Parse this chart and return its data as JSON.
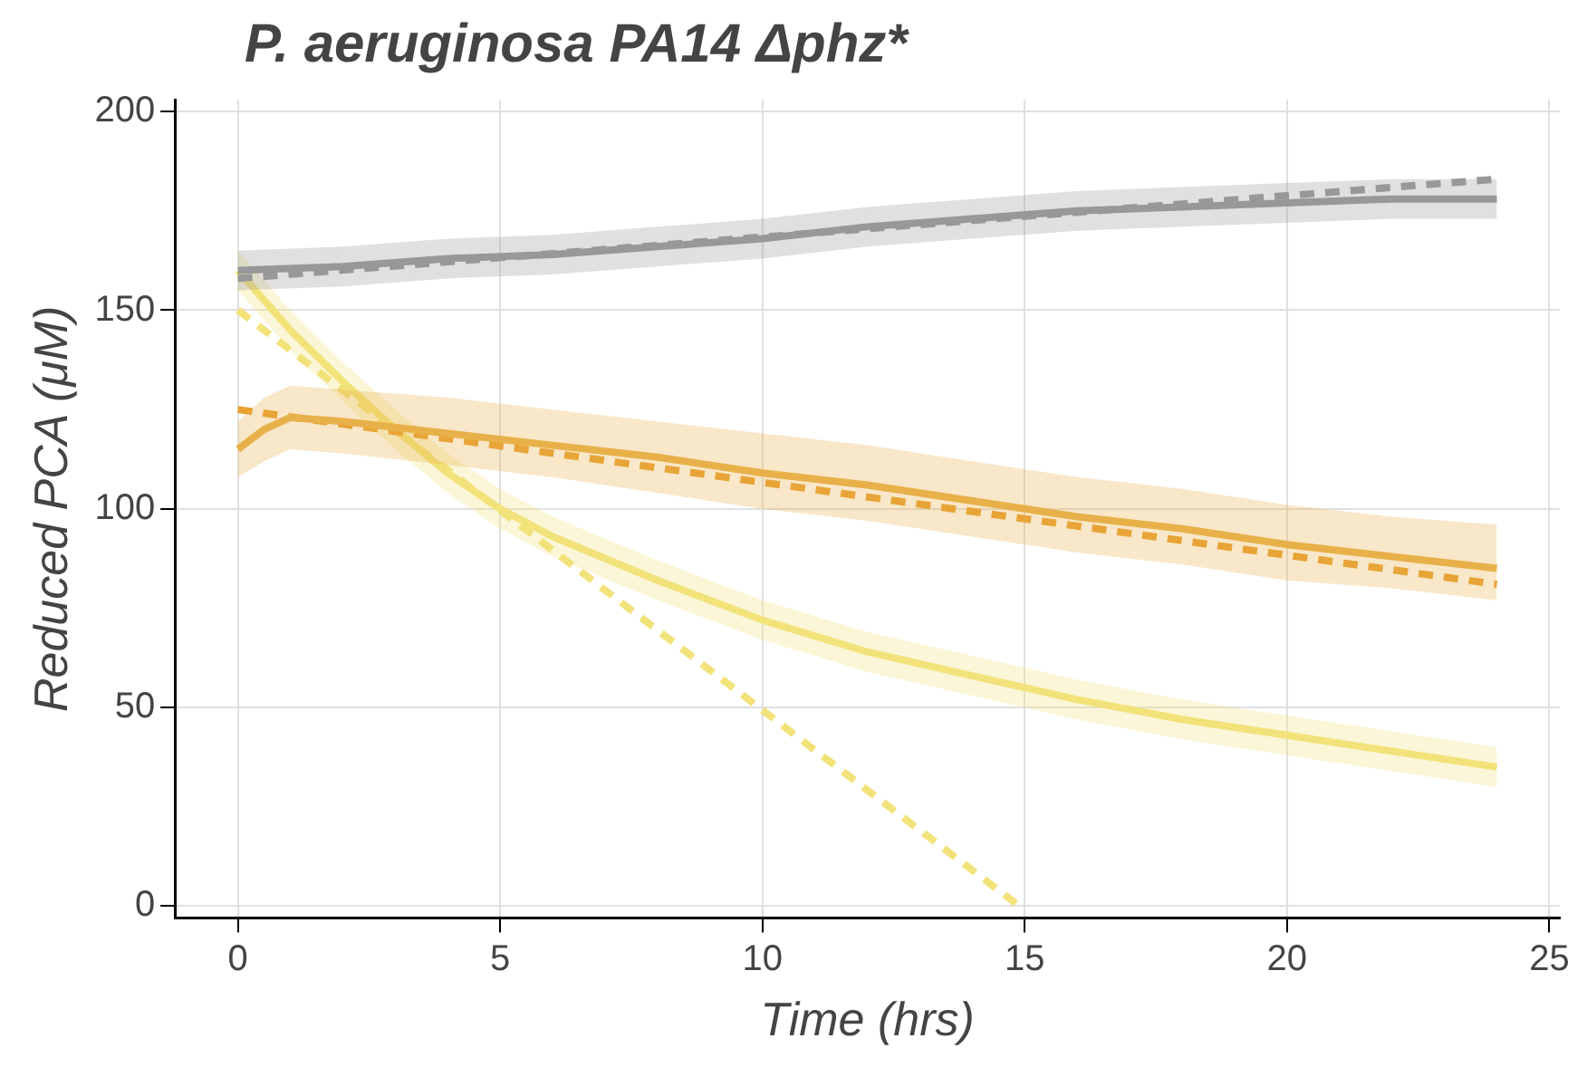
{
  "chart_data": {
    "type": "line",
    "title": "P. aeruginosa PA14 Δphz*",
    "xlabel": "Time (hrs)",
    "ylabel": "Reduced PCA (μM)",
    "xlim": [
      -1.2,
      25.2
    ],
    "ylim": [
      -3,
      203
    ],
    "xticks": [
      0,
      5,
      10,
      15,
      20,
      25
    ],
    "yticks": [
      0,
      50,
      100,
      150,
      200
    ],
    "grid": true,
    "legend": false,
    "marker": "none",
    "series": [
      {
        "color": "#999999",
        "x": [
          0,
          2,
          4,
          6,
          8,
          10,
          12,
          14,
          16,
          18,
          20,
          22,
          24
        ],
        "values": [
          160,
          161,
          163,
          164,
          166,
          168,
          171,
          173,
          175,
          176,
          177,
          178,
          178
        ],
        "lower": [
          155,
          156,
          158,
          159,
          161,
          163,
          166,
          168,
          170,
          171,
          172,
          173,
          173
        ],
        "upper": [
          165,
          166,
          168,
          169,
          171,
          173,
          176,
          178,
          180,
          181,
          182,
          183,
          183
        ]
      },
      {
        "color": "#999999",
        "line_style": "dashed",
        "x": [
          0,
          24
        ],
        "values": [
          158,
          183
        ]
      },
      {
        "color": "#e8b04a",
        "x": [
          0,
          0.5,
          1,
          2,
          4,
          6,
          8,
          10,
          12,
          14,
          16,
          18,
          20,
          22,
          24
        ],
        "values": [
          115,
          120,
          123,
          122,
          119,
          116,
          113,
          109,
          106,
          102,
          98,
          95,
          91,
          88,
          85
        ],
        "lower": [
          108,
          112,
          115,
          114,
          111,
          108,
          104,
          100,
          97,
          93,
          89,
          86,
          82,
          80,
          77
        ],
        "upper": [
          122,
          128,
          131,
          130,
          128,
          125,
          122,
          119,
          116,
          112,
          108,
          105,
          101,
          98,
          96
        ]
      },
      {
        "color": "#e8a030",
        "line_style": "dashed",
        "x": [
          0,
          24
        ],
        "values": [
          125,
          81
        ]
      },
      {
        "color": "#f2e27a",
        "x": [
          0,
          1,
          2,
          3,
          4,
          5,
          6,
          8,
          10,
          12,
          14,
          16,
          18,
          20,
          22,
          24
        ],
        "values": [
          160,
          145,
          132,
          120,
          109,
          100,
          93,
          82,
          72,
          64,
          58,
          52,
          47,
          43,
          39,
          35
        ],
        "lower": [
          155,
          140,
          127,
          115,
          104,
          95,
          88,
          77,
          67,
          59,
          53,
          47,
          42,
          38,
          34,
          30
        ],
        "upper": [
          165,
          150,
          137,
          125,
          114,
          105,
          98,
          87,
          77,
          69,
          63,
          57,
          52,
          48,
          44,
          40
        ]
      },
      {
        "color": "#f2e27a",
        "line_style": "dashed",
        "x": [
          0,
          14.9
        ],
        "values": [
          150,
          0
        ]
      }
    ]
  }
}
